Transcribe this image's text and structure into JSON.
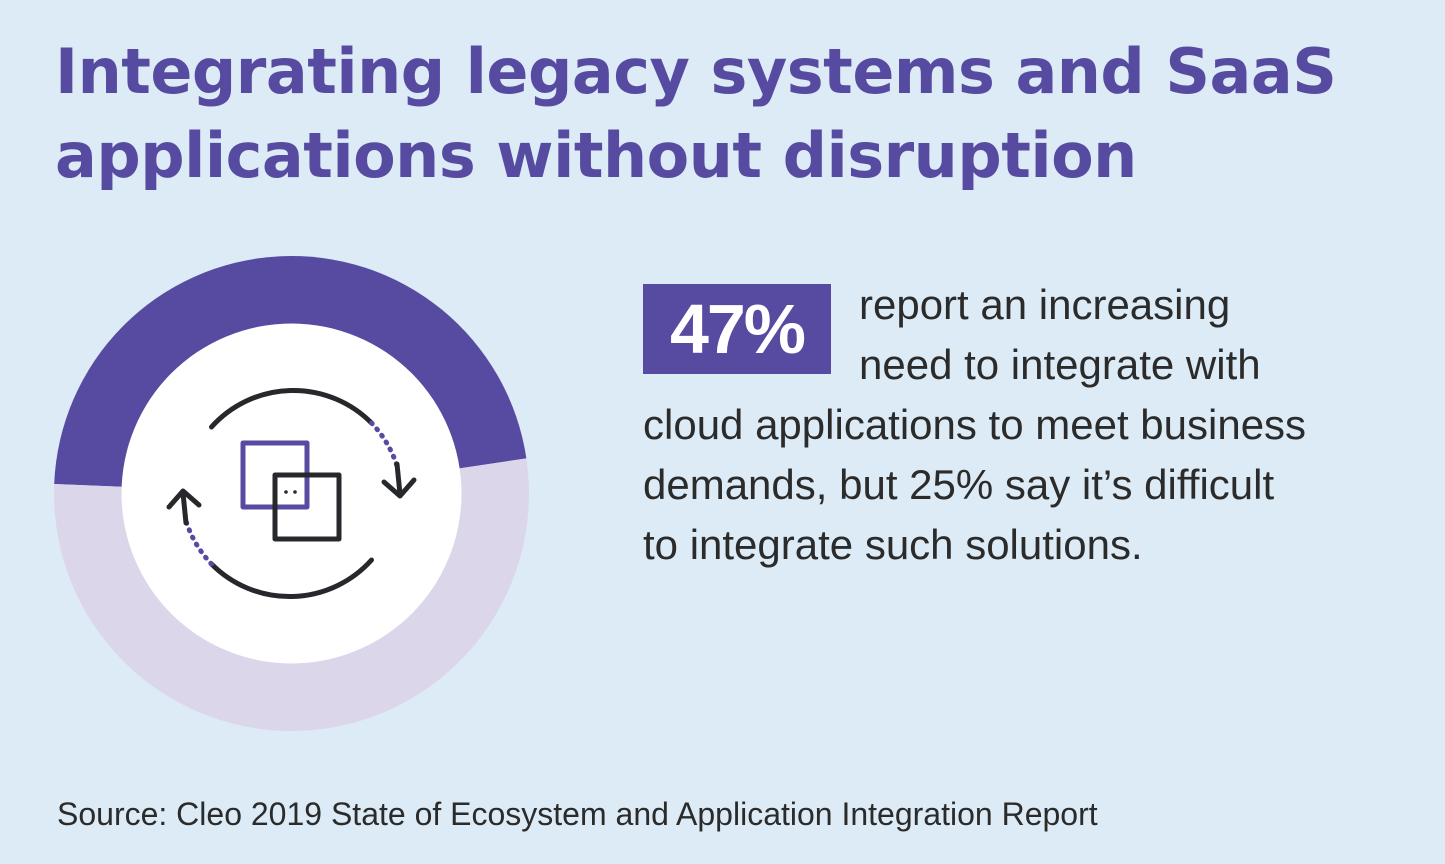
{
  "title_lines": [
    "Integrating legacy systems and SaaS",
    "applications without disruption"
  ],
  "stat": {
    "value": "47%",
    "lines": [
      "report an increasing",
      "need to integrate with",
      "cloud applications to meet business",
      "demands, but 25% say it’s difficult",
      "to integrate such solutions."
    ]
  },
  "source": "Source: Cleo 2019 State of Ecosystem and Application Integration Report",
  "icon": "sync-integration-icon",
  "chart_data": {
    "type": "pie",
    "variant": "donut",
    "categories": [
      "",
      ""
    ],
    "values": [
      47,
      53
    ],
    "colors": [
      "#564ba0",
      "#dcd6ea"
    ]
  },
  "colors": {
    "background": "#dcebf5",
    "accent": "#564ba0",
    "accent_light": "#dcd6ea",
    "text": "#2b2b2b"
  }
}
